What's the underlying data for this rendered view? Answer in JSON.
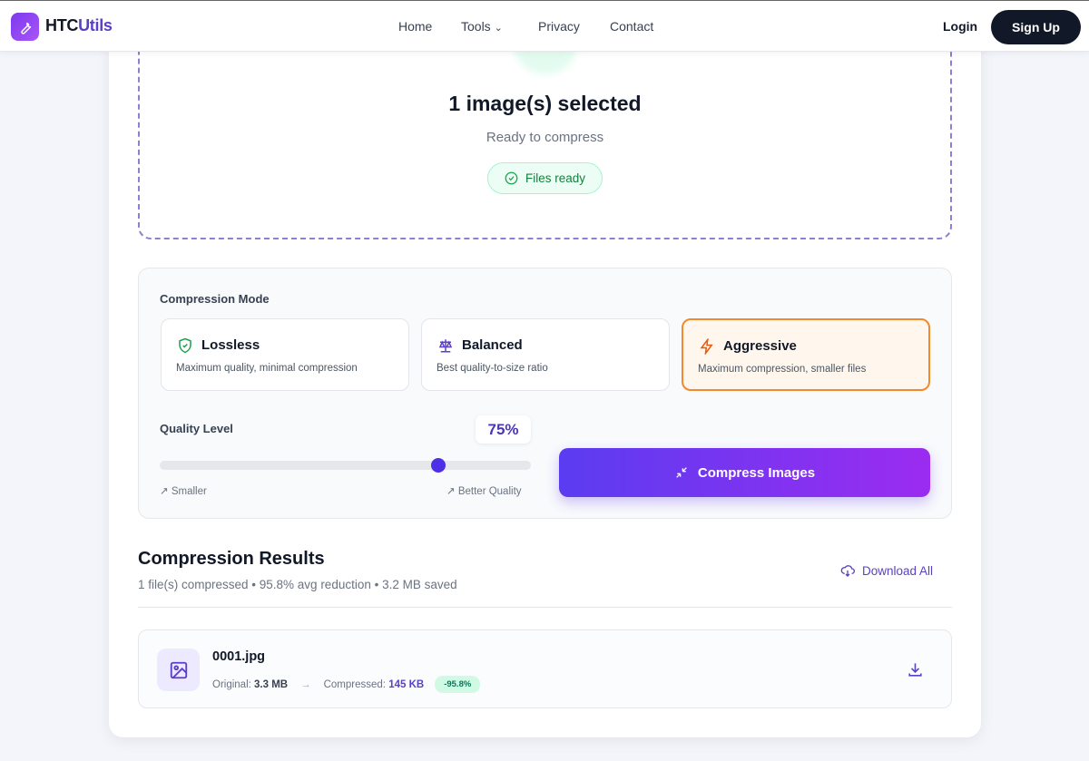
{
  "header": {
    "brand_prefix": "HTC",
    "brand_suffix": "Utils",
    "nav": [
      "Home",
      "Tools",
      "Privacy",
      "Contact"
    ],
    "login": "Login",
    "signup": "Sign Up"
  },
  "upload": {
    "title": "1 image(s) selected",
    "subtitle": "Ready to compress",
    "badge": "Files ready"
  },
  "settings": {
    "mode_label": "Compression Mode",
    "modes": [
      {
        "title": "Lossless",
        "desc": "Maximum quality, minimal compression",
        "icon": "shield-check-icon"
      },
      {
        "title": "Balanced",
        "desc": "Best quality-to-size ratio",
        "icon": "scale-icon"
      },
      {
        "title": "Aggressive",
        "desc": "Maximum compression, smaller files",
        "icon": "zap-icon",
        "selected": true
      }
    ],
    "quality_label": "Quality Level",
    "quality_value": "75%",
    "quality": 75,
    "min_label": "Smaller",
    "max_label": "Better Quality",
    "compress_button": "Compress Images"
  },
  "results": {
    "title": "Compression Results",
    "summary": "1 file(s) compressed • 95.8% avg reduction • 3.2 MB saved",
    "download_all": "Download All",
    "files": [
      {
        "name": "0001.jpg",
        "original_label": "Original:",
        "original": "3.3 MB",
        "compressed_label": "Compressed:",
        "compressed": "145 KB",
        "reduction": "-95.8%"
      }
    ]
  },
  "colors": {
    "accent": "#5b3fc4",
    "selected_mode": "#f08a2c",
    "success": "#16a34a"
  }
}
